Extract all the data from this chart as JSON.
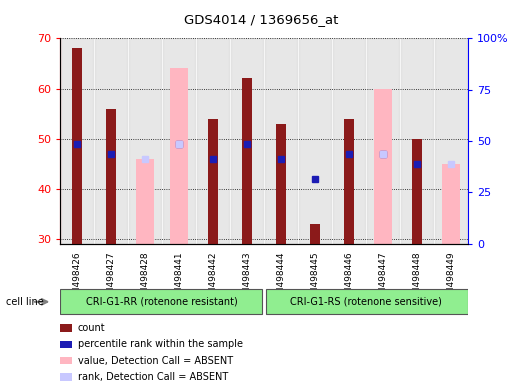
{
  "title": "GDS4014 / 1369656_at",
  "samples": [
    "GSM498426",
    "GSM498427",
    "GSM498428",
    "GSM498441",
    "GSM498442",
    "GSM498443",
    "GSM498444",
    "GSM498445",
    "GSM498446",
    "GSM498447",
    "GSM498448",
    "GSM498449"
  ],
  "group1_label": "CRI-G1-RR (rotenone resistant)",
  "group2_label": "CRI-G1-RS (rotenone sensitive)",
  "cell_line_label": "cell line",
  "count_values": [
    68,
    56,
    null,
    null,
    54,
    62,
    53,
    33,
    54,
    null,
    50,
    null
  ],
  "rank_values": [
    49,
    47,
    null,
    49,
    46,
    49,
    46,
    42,
    47,
    47,
    45,
    null
  ],
  "absent_value_values": [
    null,
    null,
    46,
    64,
    null,
    null,
    null,
    null,
    null,
    60,
    null,
    45
  ],
  "absent_rank_values": [
    null,
    null,
    46,
    49,
    null,
    null,
    null,
    null,
    null,
    47,
    null,
    45
  ],
  "ylim_left": [
    29,
    70
  ],
  "ylim_right": [
    0,
    100
  ],
  "yticks_left": [
    30,
    40,
    50,
    60,
    70
  ],
  "yticks_right": [
    0,
    25,
    50,
    75,
    100
  ],
  "yticklabels_right": [
    "0",
    "25",
    "50",
    "75",
    "100%"
  ],
  "count_color": "#8B1A1A",
  "rank_color": "#1C1CB4",
  "absent_value_color": "#FFB6C1",
  "absent_rank_color": "#C8C8FF",
  "bar_bg_color": "#D8D8D8",
  "group1_color": "#90EE90",
  "group2_color": "#90EE90",
  "legend_items": [
    "count",
    "percentile rank within the sample",
    "value, Detection Call = ABSENT",
    "rank, Detection Call = ABSENT"
  ],
  "legend_colors": [
    "#8B1A1A",
    "#1C1CB4",
    "#FFB6C1",
    "#C8C8FF"
  ]
}
